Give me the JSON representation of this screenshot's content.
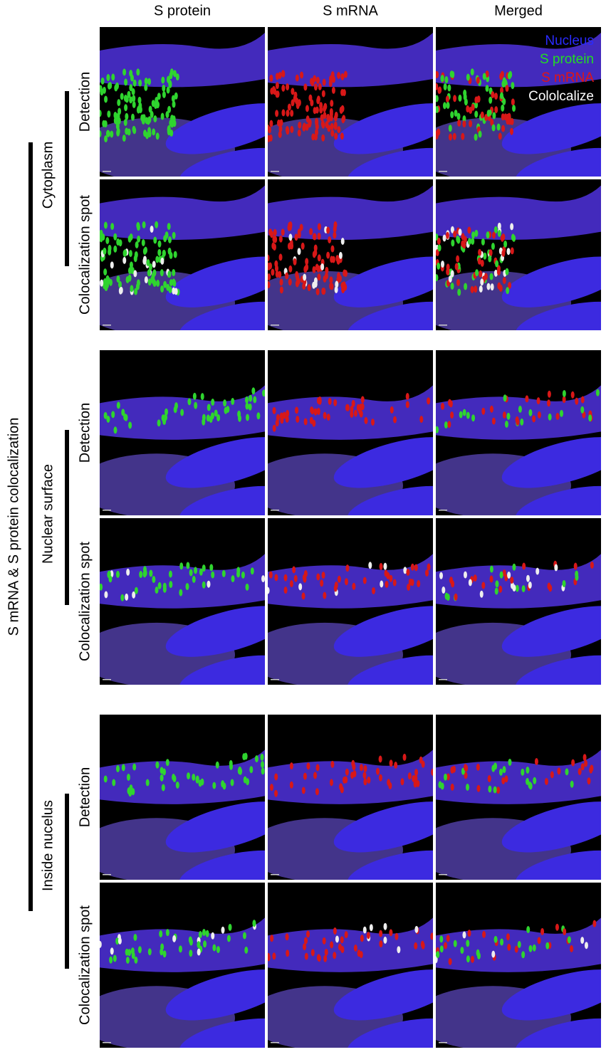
{
  "column_headers": [
    "S protein",
    "S mRNA",
    "Merged"
  ],
  "main_label": "S mRNA & S protein colocalization",
  "groups": [
    {
      "label": "Cytoplasm",
      "rows": [
        "Detection",
        "Colocalization spot"
      ]
    },
    {
      "label": "Nuclear surface",
      "rows": [
        "Detection",
        "Colocalization spot"
      ]
    },
    {
      "label": "Inside nucelus",
      "rows": [
        "Detection",
        "Colocalization spot"
      ]
    }
  ],
  "legend": [
    {
      "label": "Nucleus",
      "color": "#2a2aff"
    },
    {
      "label": "S protein",
      "color": "#22dd22"
    },
    {
      "label": "S mRNA",
      "color": "#e01515"
    },
    {
      "label": "Cololcalize",
      "color": "#ffffff"
    }
  ]
}
